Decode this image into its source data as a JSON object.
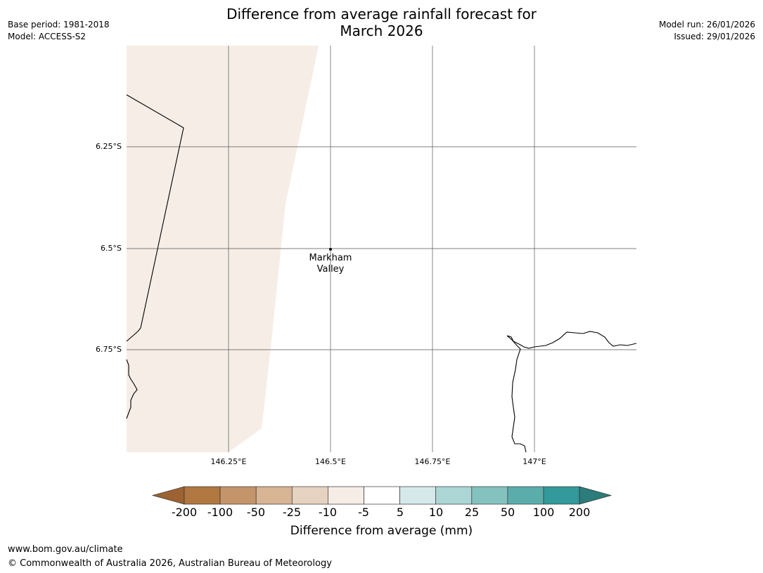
{
  "header": {
    "title_line1": "Difference from average rainfall forecast for",
    "title_line2": "March 2026",
    "base_period": "Base period: 1981-2018",
    "model": "Model: ACCESS-S2",
    "model_run": "Model run: 26/01/2026",
    "issued": "Issued: 29/01/2026"
  },
  "map": {
    "lat_labels": [
      "6.25°S",
      "6.5°S",
      "6.75°S"
    ],
    "lon_labels": [
      "146.25°E",
      "146.5°E",
      "146.75°E",
      "147°E"
    ],
    "place": {
      "line1": "Markham",
      "line2": "Valley"
    },
    "forecast_category_left_region": "-10 to -5",
    "colors": {
      "shaded_region": "#f5ede6",
      "gridline": "#555555",
      "coastline": "#000000"
    }
  },
  "colorbar": {
    "title": "Difference from average (mm)",
    "tick_labels": [
      "-200",
      "-100",
      "-50",
      "-25",
      "-10",
      "-5",
      "5",
      "10",
      "25",
      "50",
      "100",
      "200"
    ],
    "colors": [
      "#9c6231",
      "#b07840",
      "#c4956a",
      "#d6b494",
      "#e6d2c0",
      "#f5ede6",
      "#ffffff",
      "#d5e9ea",
      "#acd6d6",
      "#84c2bf",
      "#5aadab",
      "#33999a",
      "#2b7c7a"
    ]
  },
  "footer": {
    "url": "www.bom.gov.au/climate",
    "copyright": "© Commonwealth of Australia 2026, Australian Bureau of Meteorology"
  }
}
